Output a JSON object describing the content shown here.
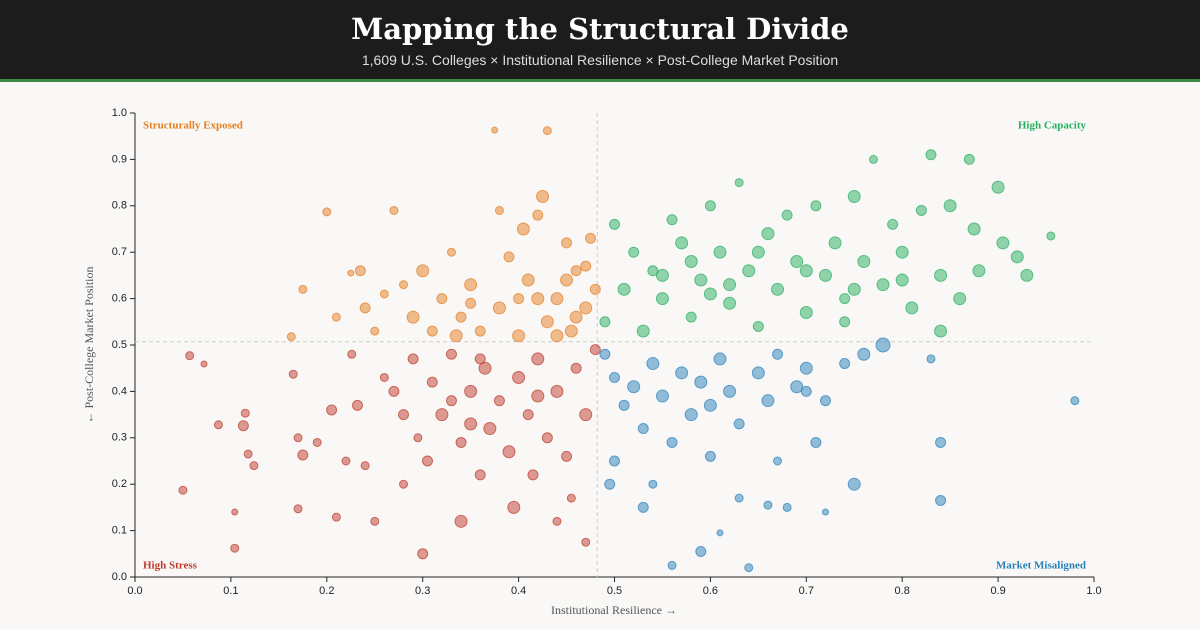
{
  "chart_data": {
    "type": "scatter",
    "title": "Mapping the Structural Divide",
    "subtitle": "1,609 U.S. Colleges × Institutional Resilience × Post-College Market Position",
    "x_label": "Institutional Resilience →",
    "y_label": "← Post-College Market Position",
    "xlim": [
      0,
      1
    ],
    "ylim": [
      0,
      1
    ],
    "xticks": [
      {
        "value": 0,
        "label": "0.0"
      },
      0.1,
      0.2,
      0.3,
      0.4,
      0.5,
      0.6,
      0.7,
      0.8,
      0.9,
      {
        "value": 1,
        "label": "1.0"
      }
    ],
    "yticks": [
      {
        "value": 0,
        "label": "0.0"
      },
      0.1,
      0.2,
      0.3,
      0.4,
      0.5,
      0.6,
      0.7,
      0.8,
      0.9,
      {
        "value": 1,
        "label": "1.0"
      }
    ],
    "reference_lines": {
      "x": 0.482,
      "y": 0.507
    },
    "opacity": 0.5,
    "series": [
      {
        "name": "High Stress",
        "color": "#c0392b",
        "corner": "bottom-left",
        "x": [
          0.057,
          0.072,
          0.05,
          0.087,
          0.104,
          0.104,
          0.115,
          0.113,
          0.118,
          0.124,
          0.165,
          0.17,
          0.17,
          0.175,
          0.19,
          0.205,
          0.21,
          0.22,
          0.226,
          0.232,
          0.25,
          0.26,
          0.27,
          0.28,
          0.29,
          0.3,
          0.295,
          0.305,
          0.31,
          0.32,
          0.33,
          0.34,
          0.34,
          0.35,
          0.36,
          0.365,
          0.37,
          0.38,
          0.39,
          0.395,
          0.4,
          0.41,
          0.415,
          0.42,
          0.43,
          0.44,
          0.45,
          0.46,
          0.47,
          0.47,
          0.455,
          0.44,
          0.48,
          0.35,
          0.33,
          0.42,
          0.36,
          0.28,
          0.24
        ],
        "values": [
          0.477,
          0.459,
          0.187,
          0.328,
          0.14,
          0.062,
          0.353,
          0.326,
          0.265,
          0.24,
          0.437,
          0.147,
          0.3,
          0.263,
          0.29,
          0.36,
          0.129,
          0.25,
          0.48,
          0.37,
          0.12,
          0.43,
          0.4,
          0.2,
          0.47,
          0.05,
          0.3,
          0.25,
          0.42,
          0.35,
          0.48,
          0.12,
          0.29,
          0.4,
          0.22,
          0.45,
          0.32,
          0.38,
          0.27,
          0.15,
          0.43,
          0.35,
          0.22,
          0.47,
          0.3,
          0.4,
          0.26,
          0.45,
          0.35,
          0.075,
          0.17,
          0.12,
          0.49,
          0.33,
          0.38,
          0.39,
          0.47,
          0.35,
          0.24
        ],
        "sizes": [
          4,
          3,
          4,
          4,
          3,
          4,
          4,
          5,
          4,
          4,
          4,
          4,
          4,
          5,
          4,
          5,
          4,
          4,
          4,
          5,
          4,
          4,
          5,
          4,
          5,
          5,
          4,
          5,
          5,
          6,
          5,
          6,
          5,
          6,
          5,
          6,
          6,
          5,
          6,
          6,
          6,
          5,
          5,
          6,
          5,
          6,
          5,
          5,
          6,
          4,
          4,
          4,
          5,
          6,
          5,
          6,
          5,
          5,
          4
        ]
      },
      {
        "name": "Structurally Exposed",
        "color": "#e67e22",
        "corner": "top-left",
        "x": [
          0.163,
          0.175,
          0.2,
          0.21,
          0.225,
          0.235,
          0.24,
          0.25,
          0.27,
          0.28,
          0.29,
          0.3,
          0.31,
          0.32,
          0.33,
          0.34,
          0.35,
          0.36,
          0.375,
          0.38,
          0.39,
          0.4,
          0.41,
          0.42,
          0.425,
          0.43,
          0.43,
          0.44,
          0.45,
          0.455,
          0.46,
          0.47,
          0.475,
          0.48,
          0.38,
          0.405,
          0.46,
          0.42,
          0.44,
          0.47,
          0.35,
          0.335,
          0.26,
          0.4,
          0.45
        ],
        "values": [
          0.518,
          0.62,
          0.787,
          0.56,
          0.655,
          0.66,
          0.58,
          0.53,
          0.79,
          0.63,
          0.56,
          0.66,
          0.53,
          0.6,
          0.7,
          0.56,
          0.63,
          0.53,
          0.963,
          0.58,
          0.69,
          0.52,
          0.64,
          0.78,
          0.82,
          0.962,
          0.55,
          0.6,
          0.72,
          0.53,
          0.66,
          0.58,
          0.73,
          0.62,
          0.79,
          0.75,
          0.56,
          0.6,
          0.52,
          0.67,
          0.59,
          0.52,
          0.61,
          0.6,
          0.64
        ],
        "sizes": [
          4,
          4,
          4,
          4,
          3,
          5,
          5,
          4,
          4,
          4,
          6,
          6,
          5,
          5,
          4,
          5,
          6,
          5,
          3,
          6,
          5,
          6,
          6,
          5,
          6,
          4,
          6,
          6,
          5,
          6,
          5,
          6,
          5,
          5,
          4,
          6,
          6,
          6,
          6,
          5,
          5,
          6,
          4,
          5,
          6
        ]
      },
      {
        "name": "High Capacity",
        "color": "#27ae60",
        "corner": "top-right",
        "x": [
          0.49,
          0.5,
          0.51,
          0.52,
          0.53,
          0.54,
          0.55,
          0.56,
          0.57,
          0.58,
          0.59,
          0.6,
          0.61,
          0.62,
          0.63,
          0.64,
          0.65,
          0.66,
          0.67,
          0.68,
          0.69,
          0.7,
          0.71,
          0.72,
          0.73,
          0.74,
          0.75,
          0.76,
          0.77,
          0.78,
          0.79,
          0.8,
          0.81,
          0.82,
          0.83,
          0.84,
          0.85,
          0.86,
          0.87,
          0.875,
          0.88,
          0.9,
          0.905,
          0.92,
          0.93,
          0.955,
          0.6,
          0.65,
          0.7,
          0.75,
          0.8,
          0.55,
          0.58,
          0.62,
          0.84,
          0.74
        ],
        "values": [
          0.55,
          0.76,
          0.62,
          0.7,
          0.53,
          0.66,
          0.6,
          0.77,
          0.72,
          0.56,
          0.64,
          0.8,
          0.7,
          0.59,
          0.85,
          0.66,
          0.54,
          0.74,
          0.62,
          0.78,
          0.68,
          0.57,
          0.8,
          0.65,
          0.72,
          0.6,
          0.82,
          0.68,
          0.9,
          0.63,
          0.76,
          0.7,
          0.58,
          0.79,
          0.91,
          0.65,
          0.8,
          0.6,
          0.9,
          0.75,
          0.66,
          0.84,
          0.72,
          0.69,
          0.65,
          0.735,
          0.61,
          0.7,
          0.66,
          0.62,
          0.64,
          0.65,
          0.68,
          0.63,
          0.53,
          0.55
        ],
        "sizes": [
          5,
          5,
          6,
          5,
          6,
          5,
          6,
          5,
          6,
          5,
          6,
          5,
          6,
          6,
          4,
          6,
          5,
          6,
          6,
          5,
          6,
          6,
          5,
          6,
          6,
          5,
          6,
          6,
          4,
          6,
          5,
          6,
          6,
          5,
          5,
          6,
          6,
          6,
          5,
          6,
          6,
          6,
          6,
          6,
          6,
          4,
          6,
          6,
          6,
          6,
          6,
          6,
          6,
          6,
          6,
          5
        ]
      },
      {
        "name": "Market Misaligned",
        "color": "#2980b9",
        "corner": "bottom-right",
        "x": [
          0.49,
          0.5,
          0.51,
          0.5,
          0.495,
          0.52,
          0.53,
          0.53,
          0.54,
          0.55,
          0.56,
          0.56,
          0.57,
          0.58,
          0.59,
          0.6,
          0.6,
          0.61,
          0.62,
          0.63,
          0.63,
          0.64,
          0.65,
          0.66,
          0.67,
          0.67,
          0.68,
          0.69,
          0.7,
          0.71,
          0.72,
          0.72,
          0.74,
          0.75,
          0.76,
          0.78,
          0.83,
          0.84,
          0.84,
          0.98,
          0.59,
          0.61,
          0.66,
          0.54,
          0.7
        ],
        "values": [
          0.48,
          0.43,
          0.37,
          0.25,
          0.2,
          0.41,
          0.32,
          0.15,
          0.46,
          0.39,
          0.29,
          0.025,
          0.44,
          0.35,
          0.42,
          0.26,
          0.37,
          0.47,
          0.4,
          0.17,
          0.33,
          0.02,
          0.44,
          0.38,
          0.48,
          0.25,
          0.15,
          0.41,
          0.45,
          0.29,
          0.14,
          0.38,
          0.46,
          0.2,
          0.48,
          0.5,
          0.47,
          0.29,
          0.165,
          0.38,
          0.055,
          0.095,
          0.155,
          0.2,
          0.4
        ],
        "sizes": [
          5,
          5,
          5,
          5,
          5,
          6,
          5,
          5,
          6,
          6,
          5,
          4,
          6,
          6,
          6,
          5,
          6,
          6,
          6,
          4,
          5,
          4,
          6,
          6,
          5,
          4,
          4,
          6,
          6,
          5,
          3,
          5,
          5,
          6,
          6,
          7,
          4,
          5,
          5,
          4,
          5,
          3,
          4,
          4,
          5
        ]
      }
    ]
  }
}
